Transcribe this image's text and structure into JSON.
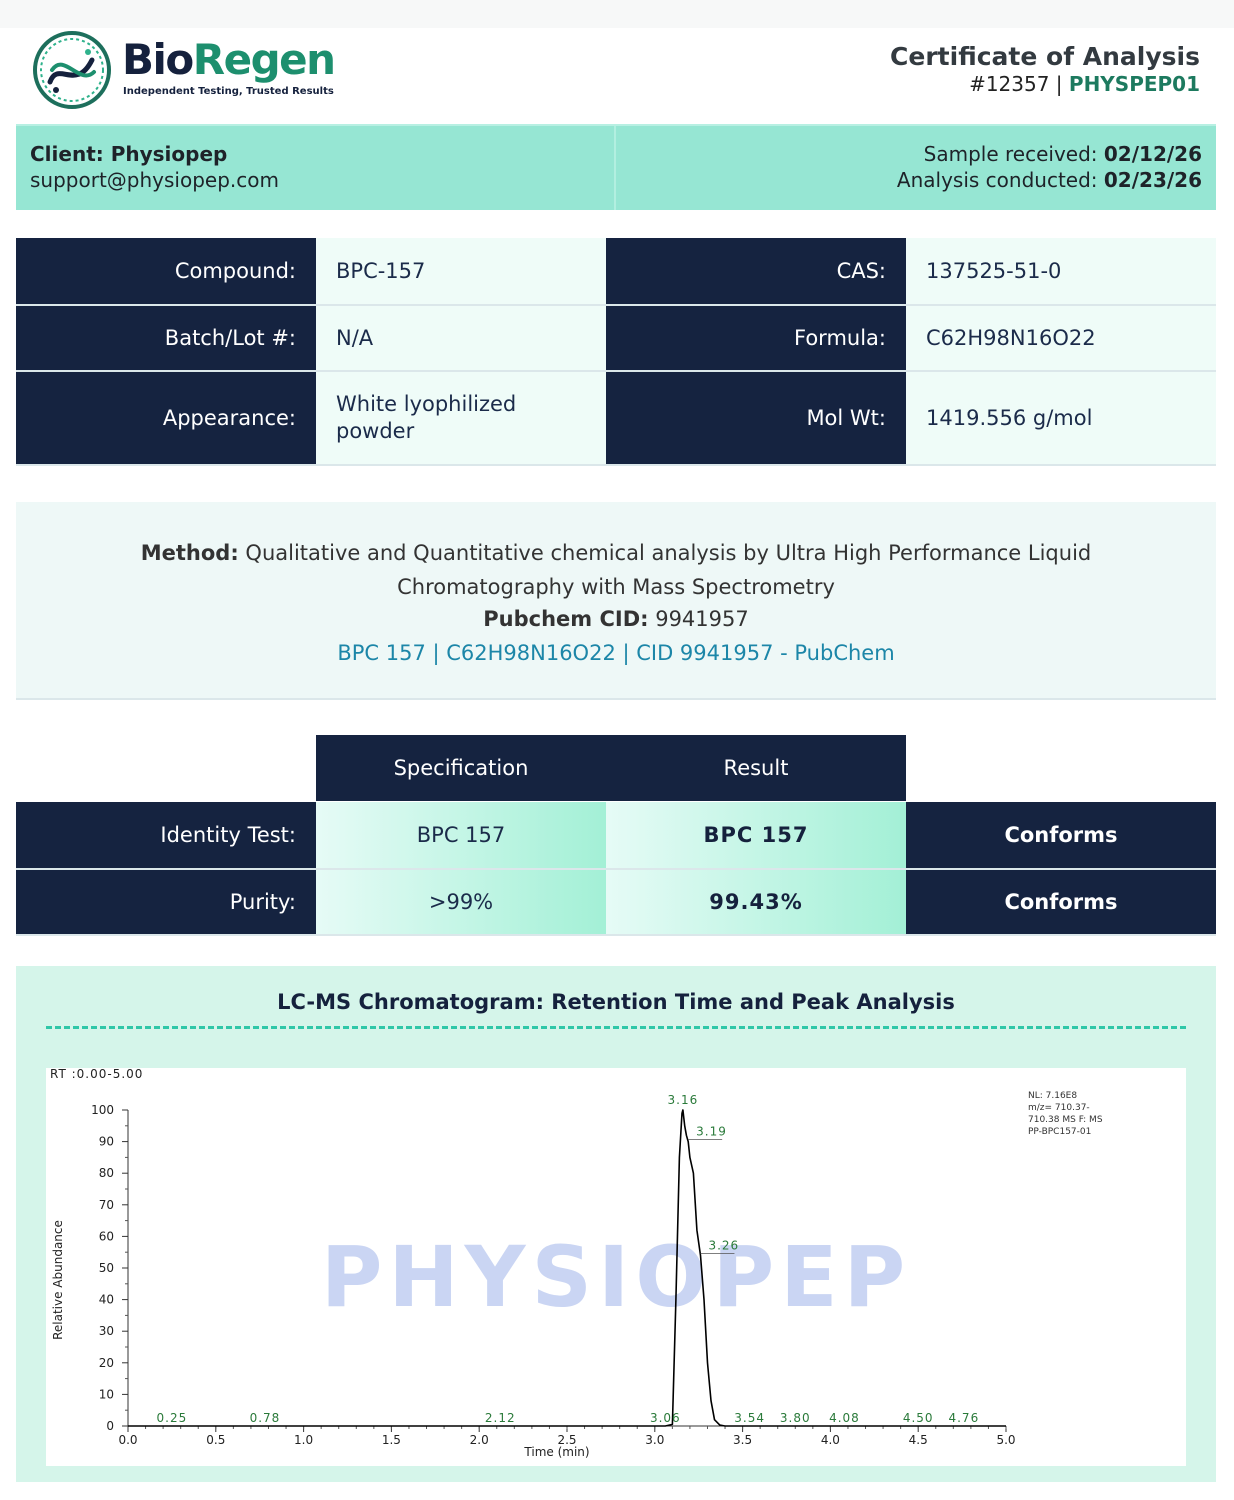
{
  "header": {
    "brand_part1": "Bio",
    "brand_part2": "Regen",
    "tagline": "Independent Testing, Trusted Results",
    "doc_title": "Certificate of Analysis",
    "doc_number": "#12357",
    "doc_sep": " | ",
    "doc_code": "PHYSPEP01"
  },
  "client": {
    "label": "Client: Physiopep",
    "email": "support@physiopep.com",
    "received_label": "Sample received: ",
    "received_date": "02/12/26",
    "conducted_label": "Analysis conducted: ",
    "conducted_date": "02/23/26"
  },
  "info": {
    "compound_label": "Compound:",
    "compound_value": "BPC-157",
    "cas_label": "CAS:",
    "cas_value": "137525-51-0",
    "batch_label": "Batch/Lot #:",
    "batch_value": "N/A",
    "formula_label": "Formula:",
    "formula_value": "C62H98N16O22",
    "appearance_label": "Appearance:",
    "appearance_value": "White lyophilized powder",
    "molwt_label": "Mol Wt:",
    "molwt_value": "1419.556 g/mol"
  },
  "method": {
    "method_label": "Method:",
    "method_text_1": " Qualitative and Quantitative chemical analysis by Ultra High Performance Liquid",
    "method_text_2": "Chromatography with Mass Spectrometry",
    "pubchem_label": "Pubchem CID:",
    "pubchem_value": " 9941957",
    "link_text": "BPC 157 | C62H98N16O22 | CID 9941957 - PubChem"
  },
  "results": {
    "col_spec": "Specification",
    "col_result": "Result",
    "rows": [
      {
        "label": "Identity Test:",
        "spec": "BPC 157",
        "result": "BPC 157",
        "status": "Conforms"
      },
      {
        "label": "Purity:",
        "spec": ">99%",
        "result": "99.43%",
        "status": "Conforms"
      }
    ]
  },
  "chromatogram": {
    "title": "LC-MS Chromatogram: Retention Time and Peak Analysis",
    "watermark": "PHYSIOPEP",
    "rt_range": "RT :0.00-5.00",
    "info_lines": [
      "NL: 7.16E8",
      "m/z= 710.37-",
      "710.38 MS  F: MS",
      "PP-BPC157-01"
    ]
  },
  "chart_data": {
    "type": "line",
    "title": "",
    "xlabel": "Time (min)",
    "ylabel": "Relative Abundance",
    "xlim": [
      0,
      5
    ],
    "ylim": [
      0,
      100
    ],
    "x_ticks": [
      "0.0",
      "0.5",
      "1.0",
      "1.5",
      "2.0",
      "2.5",
      "3.0",
      "3.5",
      "4.0",
      "4.5",
      "5.0"
    ],
    "y_ticks": [
      "0",
      "10",
      "20",
      "30",
      "40",
      "50",
      "60",
      "70",
      "80",
      "90",
      "100"
    ],
    "grid": false,
    "series": [
      {
        "points": [
          [
            0.0,
            0
          ],
          [
            3.06,
            0
          ],
          [
            3.1,
            0.5
          ],
          [
            3.12,
            40
          ],
          [
            3.14,
            85
          ],
          [
            3.155,
            99
          ],
          [
            3.16,
            100
          ],
          [
            3.17,
            95
          ],
          [
            3.18,
            92
          ],
          [
            3.19,
            90
          ],
          [
            3.2,
            85
          ],
          [
            3.22,
            80
          ],
          [
            3.24,
            62
          ],
          [
            3.26,
            54
          ],
          [
            3.28,
            40
          ],
          [
            3.3,
            20
          ],
          [
            3.32,
            8
          ],
          [
            3.34,
            2
          ],
          [
            3.37,
            0.3
          ],
          [
            3.4,
            0
          ],
          [
            5.0,
            0
          ]
        ]
      }
    ],
    "peak_labels": [
      {
        "rt": "3.16",
        "x": 3.16,
        "y": 100
      },
      {
        "rt": "3.19",
        "x": 3.19,
        "y": 90
      },
      {
        "rt": "3.26",
        "x": 3.26,
        "y": 54
      },
      {
        "rt": "0.25",
        "x": 0.25,
        "y": 0
      },
      {
        "rt": "0.78",
        "x": 0.78,
        "y": 0
      },
      {
        "rt": "2.12",
        "x": 2.12,
        "y": 0
      },
      {
        "rt": "3.06",
        "x": 3.06,
        "y": 0
      },
      {
        "rt": "3.54",
        "x": 3.54,
        "y": 0
      },
      {
        "rt": "3.80",
        "x": 3.8,
        "y": 0
      },
      {
        "rt": "4.08",
        "x": 4.08,
        "y": 0
      },
      {
        "rt": "4.50",
        "x": 4.5,
        "y": 0
      },
      {
        "rt": "4.76",
        "x": 4.76,
        "y": 0
      }
    ]
  },
  "colors": {
    "navy": "#152340",
    "teal": "#1d8f6e",
    "mint": "#96e6d3",
    "link": "#1c86a8",
    "peak_label": "#2a7a3a"
  }
}
